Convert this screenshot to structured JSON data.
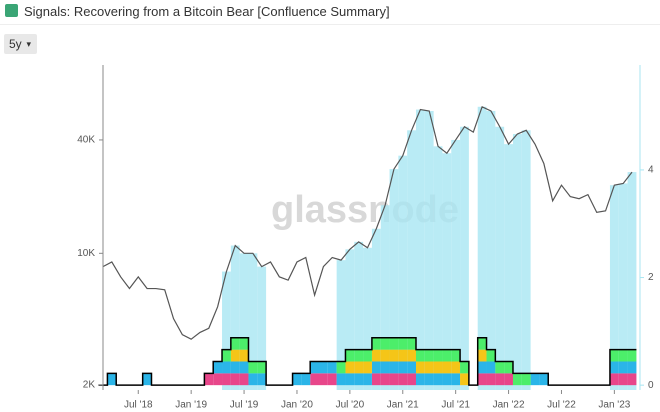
{
  "header": {
    "title": "Signals: Recovering from a Bitcoin Bear [Confluence Summary]",
    "range": "5y"
  },
  "chart_data": {
    "type": "line",
    "watermark": "glassnode",
    "log_y": true,
    "x": [
      "2018-03",
      "2018-04",
      "2018-05",
      "2018-06",
      "2018-07",
      "2018-08",
      "2018-09",
      "2018-10",
      "2018-11",
      "2018-12",
      "2019-01",
      "2019-02",
      "2019-03",
      "2019-04",
      "2019-05",
      "2019-06",
      "2019-07",
      "2019-08",
      "2019-09",
      "2019-10",
      "2019-11",
      "2019-12",
      "2020-01",
      "2020-02",
      "2020-03",
      "2020-04",
      "2020-05",
      "2020-06",
      "2020-07",
      "2020-08",
      "2020-09",
      "2020-10",
      "2020-11",
      "2020-12",
      "2021-01",
      "2021-02",
      "2021-03",
      "2021-04",
      "2021-05",
      "2021-06",
      "2021-07",
      "2021-08",
      "2021-09",
      "2021-10",
      "2021-11",
      "2021-12",
      "2022-01",
      "2022-02",
      "2022-03",
      "2022-04",
      "2022-05",
      "2022-06",
      "2022-07",
      "2022-08",
      "2022-09",
      "2022-10",
      "2022-11",
      "2022-12",
      "2023-01",
      "2023-02",
      "2023-03"
    ],
    "xticks": [
      {
        "value": "2018-07",
        "label": "Jul '18"
      },
      {
        "value": "2019-01",
        "label": "Jan '19"
      },
      {
        "value": "2019-07",
        "label": "Jul '19"
      },
      {
        "value": "2020-01",
        "label": "Jan '20"
      },
      {
        "value": "2020-07",
        "label": "Jul '20"
      },
      {
        "value": "2021-01",
        "label": "Jan '21"
      },
      {
        "value": "2021-07",
        "label": "Jul '21"
      },
      {
        "value": "2022-01",
        "label": "Jan '22"
      },
      {
        "value": "2022-07",
        "label": "Jul '22"
      },
      {
        "value": "2023-01",
        "label": "Jan '23"
      }
    ],
    "ylim": [
      1880,
      100000
    ],
    "yticks": [
      {
        "value": 2000,
        "label": "2K"
      },
      {
        "value": 10000,
        "label": "10K"
      },
      {
        "value": 40000,
        "label": "40K"
      }
    ],
    "y2lim": [
      -0.09,
      5.95
    ],
    "y2ticks": [
      0,
      2,
      4
    ],
    "shade_color": "#a8e6f2",
    "series": [
      {
        "type": "line",
        "axis": "y",
        "color": "#555555",
        "values": [
          8500,
          9000,
          7500,
          6500,
          7500,
          6500,
          6500,
          6400,
          4500,
          3700,
          3500,
          3800,
          4000,
          5200,
          8000,
          11000,
          10000,
          10000,
          8500,
          9000,
          7500,
          7200,
          9000,
          9500,
          6000,
          8500,
          9500,
          9200,
          10500,
          11500,
          10700,
          13500,
          18000,
          28000,
          33000,
          45000,
          58000,
          57000,
          37000,
          34000,
          40000,
          47000,
          44000,
          60000,
          57000,
          47000,
          38000,
          43000,
          45000,
          38000,
          30000,
          19000,
          23000,
          20000,
          19500,
          20500,
          16500,
          16800,
          23000,
          23500,
          27000
        ]
      },
      {
        "type": "bar",
        "axis": "y2",
        "color": "#e8468a",
        "values": [
          0,
          0,
          0,
          0,
          0,
          0,
          0,
          0,
          0,
          0,
          0,
          0,
          0.22,
          0.22,
          0.22,
          0.22,
          0.22,
          0,
          0,
          0,
          0,
          0,
          0,
          0,
          0.22,
          0.22,
          0.22,
          0,
          0,
          0,
          0,
          0.22,
          0.22,
          0.22,
          0.22,
          0.22,
          0,
          0,
          0,
          0,
          0,
          0,
          0,
          0.22,
          0.22,
          0.22,
          0.22,
          0,
          0,
          0,
          0,
          0,
          0,
          0,
          0,
          0,
          0,
          0,
          0.22,
          0.22,
          0.22
        ]
      },
      {
        "type": "bar",
        "axis": "y2",
        "color": "#2bb5e8",
        "values": [
          0,
          0.22,
          0,
          0,
          0,
          0.22,
          0,
          0,
          0,
          0,
          0,
          0,
          0,
          0.22,
          0.22,
          0.22,
          0.22,
          0.22,
          0.22,
          0,
          0,
          0,
          0.22,
          0.22,
          0.22,
          0.22,
          0.22,
          0.22,
          0.22,
          0.22,
          0.22,
          0.22,
          0.22,
          0.22,
          0.22,
          0.22,
          0.22,
          0.22,
          0.22,
          0.22,
          0.22,
          0,
          0,
          0.22,
          0.22,
          0,
          0,
          0,
          0,
          0.22,
          0.22,
          0,
          0,
          0,
          0,
          0,
          0,
          0,
          0.22,
          0.22,
          0.22
        ]
      },
      {
        "type": "bar",
        "axis": "y2",
        "color": "#f5c518",
        "values": [
          0,
          0,
          0,
          0,
          0,
          0,
          0,
          0,
          0,
          0,
          0,
          0,
          0,
          0,
          0,
          0.22,
          0.22,
          0,
          0,
          0,
          0,
          0,
          0,
          0,
          0,
          0,
          0,
          0,
          0.22,
          0.22,
          0.22,
          0.22,
          0.22,
          0.22,
          0.22,
          0.22,
          0.22,
          0.22,
          0.22,
          0.22,
          0.22,
          0.22,
          0,
          0.22,
          0,
          0,
          0,
          0,
          0,
          0,
          0,
          0,
          0,
          0,
          0,
          0,
          0,
          0,
          0,
          0,
          0
        ]
      },
      {
        "type": "bar",
        "axis": "y2",
        "color": "#4cee6a",
        "values": [
          0,
          0,
          0,
          0,
          0,
          0,
          0,
          0,
          0,
          0,
          0,
          0,
          0,
          0,
          0.22,
          0.22,
          0.22,
          0.22,
          0.22,
          0,
          0,
          0,
          0,
          0,
          0,
          0,
          0,
          0.22,
          0.22,
          0.22,
          0.22,
          0.22,
          0.22,
          0.22,
          0.22,
          0.22,
          0.22,
          0.22,
          0.22,
          0.22,
          0.22,
          0.22,
          0,
          0.22,
          0.22,
          0.22,
          0.22,
          0.22,
          0.22,
          0,
          0,
          0,
          0,
          0,
          0,
          0,
          0,
          0,
          0.22,
          0.22,
          0.22
        ]
      },
      {
        "type": "step",
        "axis": "y2",
        "color": "#000000",
        "values": [
          0,
          0.22,
          0,
          0,
          0,
          0.22,
          0,
          0,
          0,
          0,
          0,
          0,
          0.22,
          0.44,
          0.66,
          0.88,
          0.88,
          0.44,
          0.44,
          0,
          0,
          0,
          0.22,
          0.22,
          0.44,
          0.44,
          0.44,
          0.44,
          0.66,
          0.66,
          0.66,
          0.88,
          0.88,
          0.88,
          0.88,
          0.88,
          0.66,
          0.66,
          0.66,
          0.66,
          0.66,
          0.44,
          0,
          0.88,
          0.66,
          0.44,
          0.44,
          0.22,
          0.22,
          0.22,
          0.22,
          0,
          0,
          0,
          0,
          0,
          0,
          0,
          0.66,
          0.66,
          0.66
        ]
      }
    ]
  }
}
